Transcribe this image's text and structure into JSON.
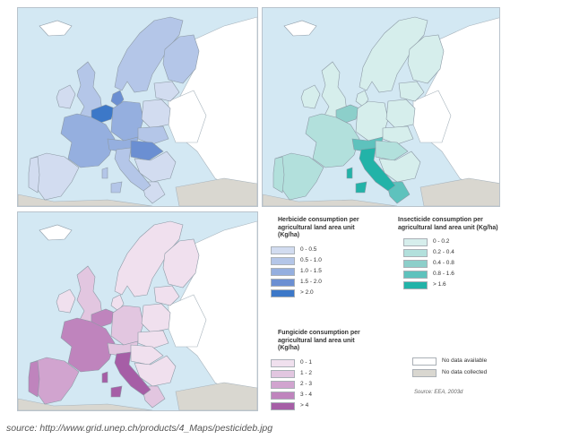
{
  "colors": {
    "sea": "#d3e8f3",
    "land_no_data": "#ffffff",
    "land_not_collected": "#d9d7d0"
  },
  "herbicide": {
    "title": "Herbicide consumption per agricultural land area unit (Kg/ha)",
    "classes": [
      {
        "label": "0 - 0.5",
        "color": "#d2dcf0"
      },
      {
        "label": "0.5 - 1.0",
        "color": "#b4c6e8"
      },
      {
        "label": "1.0 - 1.5",
        "color": "#95afdf"
      },
      {
        "label": "1.5 - 2.0",
        "color": "#6b8fd2"
      },
      {
        "label": "> 2.0",
        "color": "#3c78c8"
      }
    ]
  },
  "insecticide": {
    "title": "Insecticide consumption per agricultural land area unit (Kg/ha)",
    "classes": [
      {
        "label": "0 - 0.2",
        "color": "#d6eeec"
      },
      {
        "label": "0.2 - 0.4",
        "color": "#b2e0dc"
      },
      {
        "label": "0.4 - 0.8",
        "color": "#8ccfca"
      },
      {
        "label": "0.8 - 1.6",
        "color": "#5ec2bd"
      },
      {
        "label": "> 1.6",
        "color": "#22b3a8"
      }
    ]
  },
  "fungicide": {
    "title": "Fungicide consumption per agricultural land area unit (Kg/ha)",
    "classes": [
      {
        "label": "0 - 1",
        "color": "#f0e0ee"
      },
      {
        "label": "1 - 2",
        "color": "#e2c6e0"
      },
      {
        "label": "2 - 3",
        "color": "#d1a4cf"
      },
      {
        "label": "3 - 4",
        "color": "#bf84bd"
      },
      {
        "label": "> 4",
        "color": "#a65ea6"
      }
    ]
  },
  "nodata_legend": [
    {
      "label": "No data available",
      "color": "#ffffff"
    },
    {
      "label": "No data collected",
      "color": "#d9d7d0"
    }
  ],
  "maps": {
    "herbicide": {
      "uk": 1,
      "ireland": 0,
      "france": 2,
      "benelux": 4,
      "germany": 2,
      "denmark": 3,
      "scandinavia": 1,
      "finland": 1,
      "iberia": 0,
      "portugal": 0,
      "italy": 1,
      "alpine": 2,
      "central_east": 1,
      "hungary": 3,
      "balkans": 0,
      "greece": 0,
      "baltics": 0,
      "poland": 0
    },
    "insecticide": {
      "uk": 0,
      "ireland": 0,
      "france": 1,
      "benelux": 2,
      "germany": 0,
      "denmark": 0,
      "scandinavia": 0,
      "finland": 0,
      "iberia": 1,
      "portugal": 1,
      "italy": 4,
      "alpine": 3,
      "central_east": 0,
      "hungary": 1,
      "balkans": 0,
      "greece": 3,
      "baltics": 0,
      "poland": 0
    },
    "fungicide": {
      "uk": 1,
      "ireland": 0,
      "france": 3,
      "benelux": 3,
      "germany": 1,
      "denmark": 0,
      "scandinavia": 0,
      "finland": 0,
      "iberia": 2,
      "portugal": 3,
      "italy": 4,
      "alpine": 1,
      "central_east": 0,
      "hungary": 0,
      "balkans": 0,
      "greece": 1,
      "baltics": 0,
      "poland": 0
    }
  },
  "source_note": "Source: EEA, 2003d",
  "source_caption": "source: http://www.grid.unep.ch/products/4_Maps/pesticideb.jpg"
}
